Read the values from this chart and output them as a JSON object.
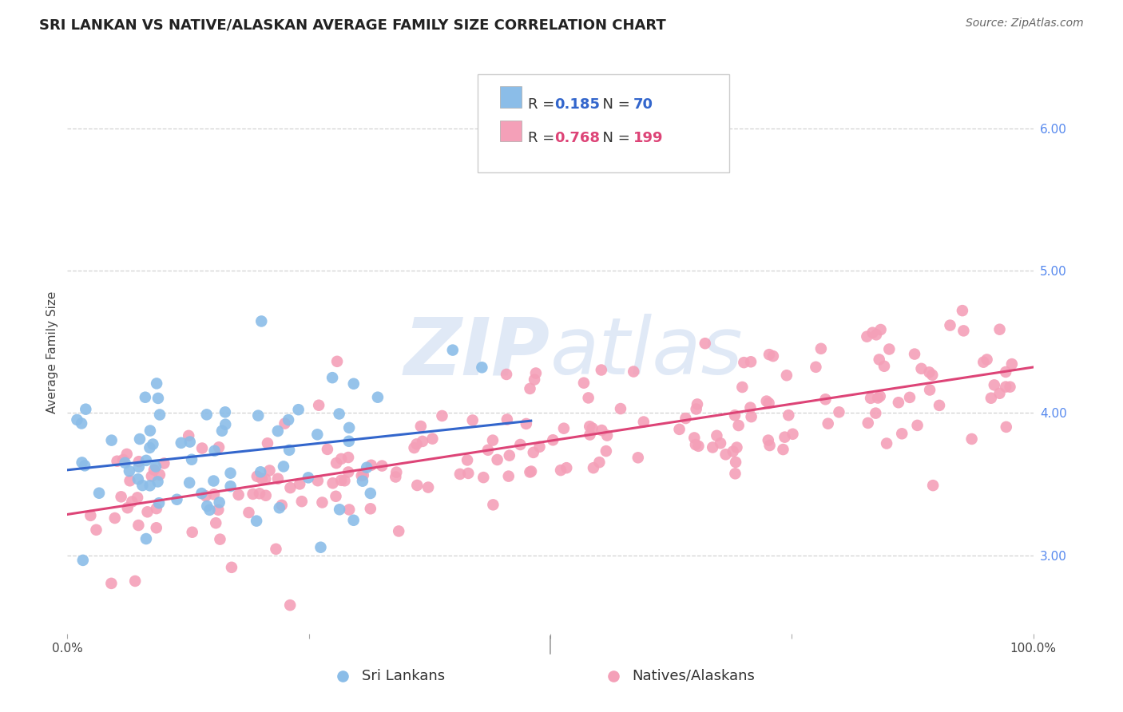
{
  "title": "SRI LANKAN VS NATIVE/ALASKAN AVERAGE FAMILY SIZE CORRELATION CHART",
  "source": "Source: ZipAtlas.com",
  "ylabel": "Average Family Size",
  "yticks_right": [
    3.0,
    4.0,
    5.0,
    6.0
  ],
  "xlim": [
    0.0,
    1.0
  ],
  "ylim": [
    2.45,
    6.4
  ],
  "blue_R": 0.185,
  "blue_N": 70,
  "pink_R": 0.768,
  "pink_N": 199,
  "blue_color": "#8BBDE8",
  "pink_color": "#F4A0B8",
  "blue_line_color": "#3366CC",
  "pink_line_color": "#DD4477",
  "blue_label": "Sri Lankans",
  "pink_label": "Natives/Alaskans",
  "watermark_zip": "ZIP",
  "watermark_atlas": "atlas",
  "background_color": "#ffffff",
  "grid_color": "#cccccc",
  "title_fontsize": 13,
  "axis_label_fontsize": 11,
  "tick_fontsize": 11,
  "legend_fontsize": 13,
  "source_fontsize": 10,
  "seed_blue": 7,
  "seed_pink": 3
}
